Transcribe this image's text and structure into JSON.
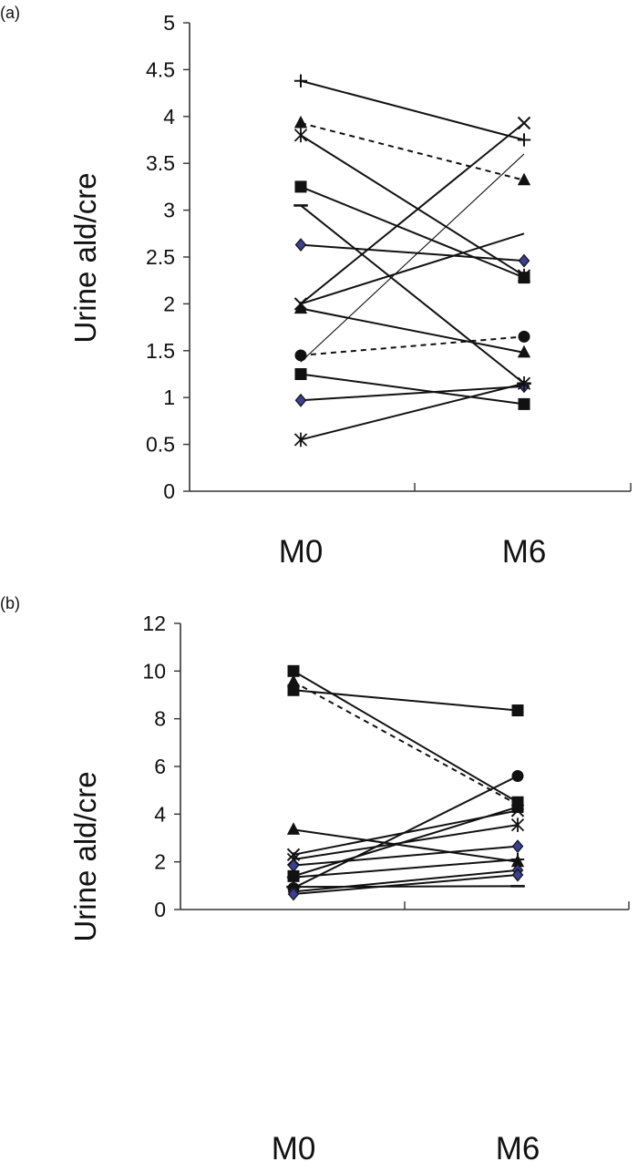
{
  "chart_data": [
    {
      "panel_label": "(a)",
      "type": "line",
      "categories": [
        "M0",
        "M6"
      ],
      "xlabel": "",
      "ylabel": "Urine ald/cre",
      "ylim": [
        0,
        5
      ],
      "yticks": [
        "0",
        "0.5",
        "1",
        "1.5",
        "2",
        "2.5",
        "3",
        "3.5",
        "4",
        "4.5",
        "5"
      ],
      "grid": false,
      "series": [
        {
          "marker": "plus",
          "style": "solid",
          "values": [
            4.38,
            3.75
          ]
        },
        {
          "marker": "triangle",
          "style": "dashed",
          "values": [
            3.93,
            3.32
          ]
        },
        {
          "marker": "star",
          "style": "solid",
          "values": [
            3.8,
            2.3
          ]
        },
        {
          "marker": "square",
          "style": "solid",
          "values": [
            3.25,
            2.28
          ]
        },
        {
          "marker": "dash",
          "style": "solid",
          "values": [
            3.05,
            1.15
          ]
        },
        {
          "marker": "diamond",
          "style": "solid",
          "values": [
            2.63,
            2.46
          ]
        },
        {
          "marker": "x",
          "style": "solid",
          "values": [
            2.0,
            3.93
          ]
        },
        {
          "marker": "none",
          "style": "solid",
          "values": [
            2.0,
            2.75
          ]
        },
        {
          "marker": "triangle",
          "style": "solid",
          "values": [
            1.95,
            1.48
          ]
        },
        {
          "marker": "circle",
          "style": "dashed",
          "values": [
            1.45,
            1.65
          ]
        },
        {
          "marker": "none",
          "style": "thin",
          "values": [
            1.38,
            3.6
          ]
        },
        {
          "marker": "square",
          "style": "solid",
          "values": [
            1.25,
            0.93
          ]
        },
        {
          "marker": "diamond",
          "style": "solid",
          "values": [
            0.97,
            1.12
          ]
        },
        {
          "marker": "star",
          "style": "solid",
          "values": [
            0.55,
            1.15
          ]
        }
      ]
    },
    {
      "panel_label": "(b)",
      "type": "line",
      "categories": [
        "M0",
        "M6"
      ],
      "xlabel": "",
      "ylabel": "Urine ald/cre",
      "ylim": [
        0,
        12
      ],
      "yticks": [
        "0",
        "2",
        "4",
        "6",
        "8",
        "10",
        "12"
      ],
      "grid": false,
      "series": [
        {
          "marker": "square",
          "style": "solid",
          "values": [
            10.0,
            4.5
          ]
        },
        {
          "marker": "triangle",
          "style": "dashed",
          "values": [
            9.55,
            4.4
          ]
        },
        {
          "marker": "square",
          "style": "solid",
          "values": [
            9.2,
            8.35
          ]
        },
        {
          "marker": "triangle",
          "style": "solid",
          "values": [
            3.35,
            2.0
          ]
        },
        {
          "marker": "x",
          "style": "solid",
          "values": [
            2.3,
            4.15
          ]
        },
        {
          "marker": "star",
          "style": "solid",
          "values": [
            2.1,
            3.55
          ]
        },
        {
          "marker": "diamond",
          "style": "solid",
          "values": [
            1.85,
            2.65
          ]
        },
        {
          "marker": "square",
          "style": "solid",
          "values": [
            1.4,
            4.3
          ]
        },
        {
          "marker": "plus",
          "style": "solid",
          "values": [
            1.35,
            2.1
          ]
        },
        {
          "marker": "circle",
          "style": "solid",
          "values": [
            0.9,
            5.6
          ]
        },
        {
          "marker": "diamond",
          "style": "solid",
          "values": [
            0.75,
            1.65
          ]
        },
        {
          "marker": "dash",
          "style": "solid",
          "values": [
            0.95,
            0.98
          ]
        },
        {
          "marker": "diamond",
          "style": "solid",
          "values": [
            0.65,
            1.45
          ]
        }
      ]
    }
  ]
}
